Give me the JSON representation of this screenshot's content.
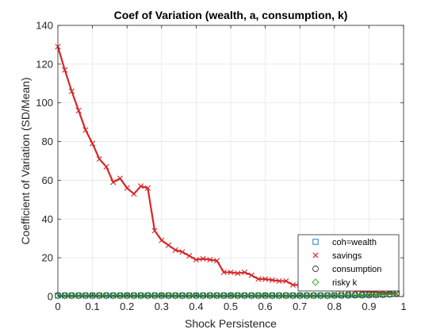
{
  "chart_data": {
    "type": "line",
    "title": "Coef of Variation (wealth, a, consumption, k)",
    "xlabel": "Shock Persistence",
    "ylabel": "Coefficient of Variation (SD/Mean)",
    "xlim": [
      0,
      1
    ],
    "ylim": [
      0,
      140
    ],
    "xticks": [
      0,
      0.1,
      0.2,
      0.3,
      0.4,
      0.5,
      0.6,
      0.7,
      0.8,
      0.9,
      1
    ],
    "xtick_labels": [
      "0",
      "0.1",
      "0.2",
      "0.3",
      "0.4",
      "0.5",
      "0.6",
      "0.7",
      "0.8",
      "0.9",
      "1"
    ],
    "yticks": [
      0,
      20,
      40,
      60,
      80,
      100,
      120,
      140
    ],
    "ytick_labels": [
      "0",
      "20",
      "40",
      "60",
      "80",
      "100",
      "120",
      "140"
    ],
    "grid": true,
    "legend_position": "bottom-right",
    "x": [
      0.0,
      0.02,
      0.04,
      0.06,
      0.08,
      0.1,
      0.12,
      0.14,
      0.16,
      0.18,
      0.2,
      0.22,
      0.24,
      0.26,
      0.28,
      0.3,
      0.32,
      0.34,
      0.36,
      0.38,
      0.4,
      0.42,
      0.44,
      0.46,
      0.48,
      0.5,
      0.52,
      0.54,
      0.56,
      0.58,
      0.6,
      0.62,
      0.64,
      0.66,
      0.68,
      0.7,
      0.72,
      0.74,
      0.76,
      0.78,
      0.8,
      0.82,
      0.84,
      0.86,
      0.88,
      0.9,
      0.92,
      0.94,
      0.96,
      0.98
    ],
    "series": [
      {
        "name": "coh=wealth",
        "marker": "square",
        "color": "#0072BD",
        "values": [
          0.5,
          0.5,
          0.5,
          0.5,
          0.5,
          0.5,
          0.5,
          0.5,
          0.5,
          0.5,
          0.5,
          0.5,
          0.5,
          0.5,
          0.5,
          0.5,
          0.5,
          0.5,
          0.5,
          0.5,
          0.5,
          0.5,
          0.5,
          0.5,
          0.5,
          0.5,
          0.5,
          0.5,
          0.5,
          0.5,
          0.5,
          0.5,
          0.5,
          0.5,
          0.5,
          0.5,
          0.5,
          0.5,
          0.5,
          0.5,
          0.6,
          0.6,
          0.6,
          0.7,
          0.7,
          0.8,
          0.9,
          1.0,
          1.2,
          1.6
        ]
      },
      {
        "name": "savings",
        "marker": "x",
        "color": "#D62728",
        "values": [
          129,
          117,
          106,
          96,
          86,
          79,
          71,
          67,
          59,
          61,
          56,
          53,
          57,
          56,
          34,
          29,
          26.5,
          24,
          23,
          21,
          19,
          19.5,
          19,
          18.5,
          12.5,
          12.5,
          12,
          12.5,
          11,
          9,
          9,
          8.5,
          8,
          8,
          6,
          6,
          5.5,
          5,
          4.5,
          4,
          3.8,
          3.5,
          3.2,
          3,
          2.8,
          2.5,
          2.2,
          2,
          1.8,
          1.6
        ]
      },
      {
        "name": "consumption",
        "marker": "circle",
        "color": "#333333",
        "values": [
          0.6,
          0.6,
          0.6,
          0.6,
          0.6,
          0.6,
          0.6,
          0.6,
          0.6,
          0.6,
          0.6,
          0.6,
          0.6,
          0.6,
          0.6,
          0.6,
          0.6,
          0.6,
          0.6,
          0.6,
          0.6,
          0.6,
          0.6,
          0.6,
          0.6,
          0.6,
          0.6,
          0.6,
          0.6,
          0.6,
          0.6,
          0.6,
          0.6,
          0.6,
          0.6,
          0.6,
          0.6,
          0.6,
          0.6,
          0.6,
          0.6,
          0.6,
          0.7,
          0.7,
          0.8,
          0.8,
          0.9,
          1.0,
          1.2,
          1.8
        ]
      },
      {
        "name": "risky k",
        "marker": "diamond",
        "color": "#2CA02C",
        "values": [
          0.4,
          0.4,
          0.4,
          0.4,
          0.4,
          0.4,
          0.4,
          0.4,
          0.4,
          0.4,
          0.4,
          0.4,
          0.4,
          0.4,
          0.4,
          0.4,
          0.4,
          0.4,
          0.4,
          0.4,
          0.4,
          0.4,
          0.4,
          0.4,
          0.4,
          0.4,
          0.4,
          0.4,
          0.4,
          0.4,
          0.4,
          0.4,
          0.4,
          0.4,
          0.4,
          0.4,
          0.4,
          0.4,
          0.4,
          0.4,
          0.5,
          0.5,
          0.5,
          0.6,
          0.6,
          0.7,
          0.8,
          0.9,
          1.1,
          1.5
        ]
      }
    ]
  }
}
